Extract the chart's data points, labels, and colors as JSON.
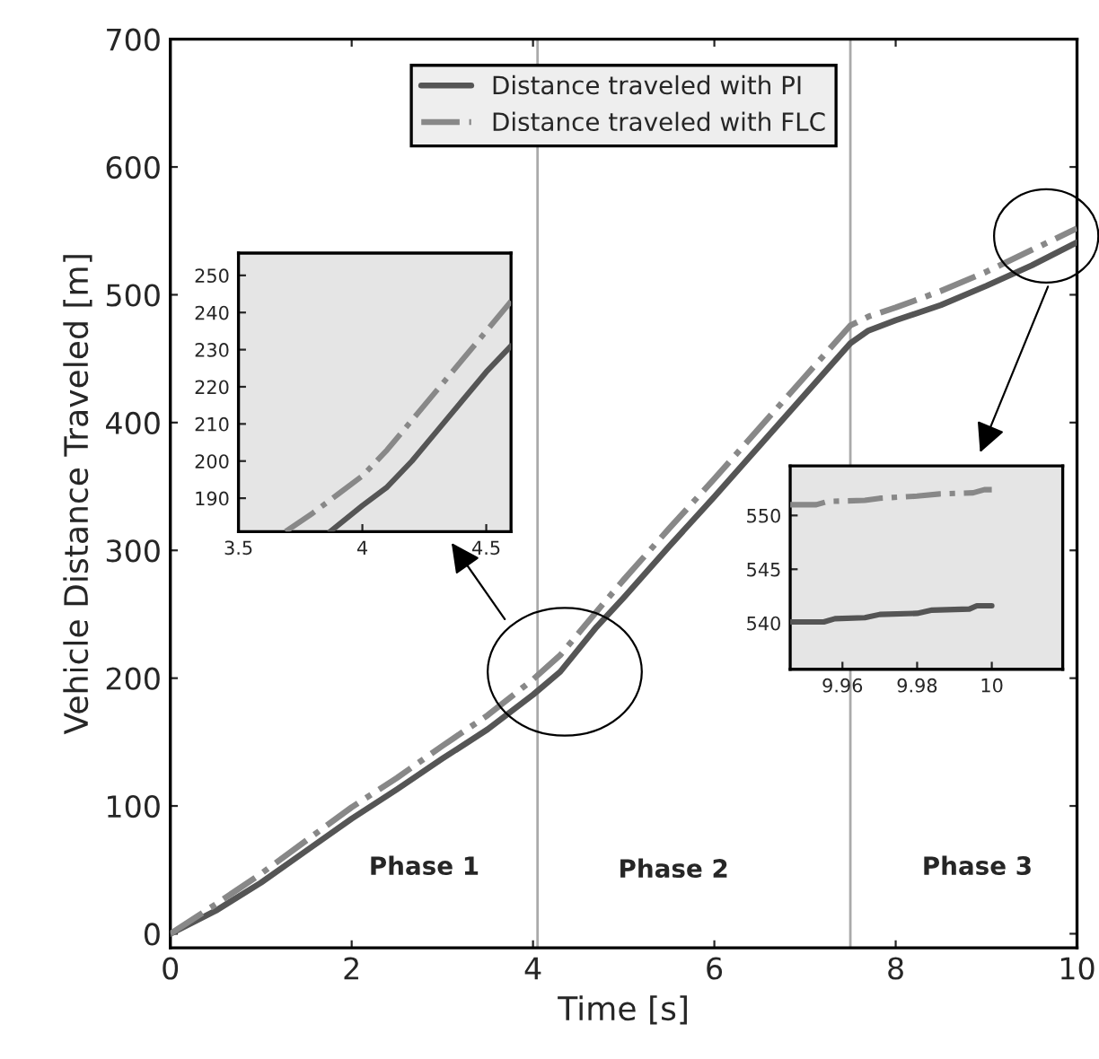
{
  "chart_data": [
    {
      "type": "line",
      "xlabel": "Time [s]",
      "ylabel": "Vehicle Distance Traveled [m]",
      "xlim": [
        0,
        10
      ],
      "ylim": [
        -11,
        700
      ],
      "xticks": [
        0,
        2,
        4,
        6,
        8,
        10
      ],
      "yticks": [
        0,
        100,
        200,
        300,
        400,
        500,
        600,
        700
      ],
      "grid": false,
      "legend": "top",
      "series": [
        {
          "name": "Distance traveled with PI",
          "color": "#555555",
          "line_style": "solid",
          "x": [
            0,
            0.5,
            1,
            1.5,
            2,
            2.5,
            3,
            3.5,
            4,
            4.3,
            4.7,
            5,
            5.5,
            6,
            6.5,
            7,
            7.5,
            7.7,
            8,
            8.5,
            9,
            9.5,
            10
          ],
          "values": [
            0,
            18,
            40,
            65,
            90,
            113,
            137,
            160,
            187,
            205,
            240,
            263,
            303,
            342,
            382,
            422,
            462,
            472,
            480,
            492,
            507,
            523,
            541
          ]
        },
        {
          "name": "Distance traveled with FLC",
          "color": "#888888",
          "line_style": "dashdot",
          "x": [
            0,
            0.5,
            1,
            1.5,
            2,
            2.5,
            3,
            3.5,
            4,
            4.3,
            4.7,
            5,
            5.5,
            6,
            6.5,
            7,
            7.5,
            7.7,
            8,
            8.5,
            9,
            9.5,
            10
          ],
          "values": [
            0,
            23,
            47,
            73,
            99,
            122,
            147,
            171,
            199,
            218,
            252,
            277,
            317,
            356,
            396,
            436,
            476,
            483,
            490,
            503,
            518,
            535,
            552
          ]
        }
      ],
      "ref_lines": [
        {
          "axis": "x",
          "value": 4.05,
          "color": "#aaaaaa"
        },
        {
          "axis": "x",
          "value": 7.5,
          "color": "#aaaaaa"
        }
      ],
      "annotations": [
        "Phase 1",
        "Phase 2",
        "Phase 3"
      ]
    },
    {
      "type": "line",
      "xlim": [
        3.5,
        4.6
      ],
      "ylim": [
        181,
        256
      ],
      "xticks": [
        3.5,
        4,
        4.5
      ],
      "yticks": [
        190,
        200,
        210,
        220,
        230,
        240,
        250
      ],
      "grid": false,
      "series": [
        {
          "color": "#555555",
          "line_style": "solid",
          "x": [
            3.87,
            4.0,
            4.1,
            4.2,
            4.3,
            4.4,
            4.5,
            4.6
          ],
          "values": [
            181,
            188,
            193,
            200,
            208,
            216,
            224,
            231
          ]
        },
        {
          "color": "#888888",
          "line_style": "dashdot",
          "x": [
            3.69,
            3.8,
            3.9,
            4.0,
            4.1,
            4.2,
            4.3,
            4.4,
            4.5,
            4.6
          ],
          "values": [
            181,
            186,
            191,
            196,
            203,
            211,
            219,
            227,
            235,
            243
          ]
        }
      ]
    },
    {
      "type": "line",
      "xlim": [
        9.946,
        10.019
      ],
      "ylim": [
        535.7,
        554.6
      ],
      "xticks": [
        9.96,
        9.98,
        10
      ],
      "yticks": [
        540,
        545,
        550
      ],
      "grid": false,
      "series": [
        {
          "color": "#555555",
          "line_style": "solid",
          "x": [
            9.946,
            9.955,
            9.958,
            9.966,
            9.97,
            9.98,
            9.984,
            9.994,
            9.996,
            10
          ],
          "values": [
            540.1,
            540.1,
            540.4,
            540.5,
            540.8,
            540.9,
            541.2,
            541.3,
            541.6,
            541.6
          ]
        },
        {
          "color": "#888888",
          "line_style": "dashdot",
          "x": [
            9.946,
            9.953,
            9.956,
            9.966,
            9.97,
            9.98,
            9.986,
            9.995,
            9.998,
            10
          ],
          "values": [
            551.0,
            551.0,
            551.3,
            551.4,
            551.6,
            551.8,
            552.0,
            552.1,
            552.4,
            552.4
          ]
        }
      ]
    }
  ]
}
